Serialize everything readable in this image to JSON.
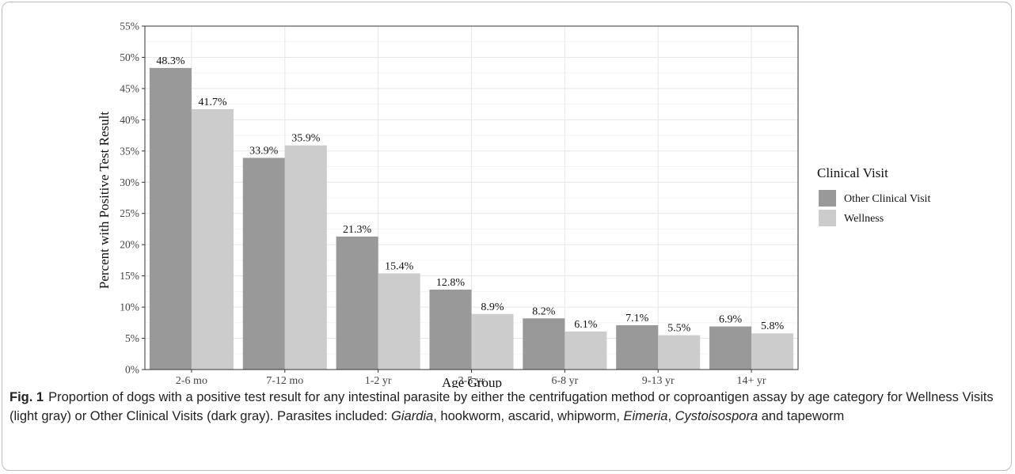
{
  "chart_data": {
    "type": "bar",
    "title": "",
    "xlabel": "Age Group",
    "ylabel": "Percent with Positive Test Result",
    "ylim": [
      0,
      55
    ],
    "yticks": [
      "0%",
      "5%",
      "10%",
      "15%",
      "20%",
      "25%",
      "30%",
      "35%",
      "40%",
      "45%",
      "50%",
      "55%"
    ],
    "grid": true,
    "legend_position": "right",
    "legend_title": "Clinical Visit",
    "categories": [
      "2-6 mo",
      "7-12 mo",
      "1-2 yr",
      "3-5 yr",
      "6-8 yr",
      "9-13 yr",
      "14+ yr"
    ],
    "series": [
      {
        "name": "Other Clinical Visit",
        "color": "#999999",
        "values": [
          48.3,
          33.9,
          21.3,
          12.8,
          8.2,
          7.1,
          6.9
        ],
        "labels": [
          "48.3%",
          "33.9%",
          "21.3%",
          "12.8%",
          "8.2%",
          "7.1%",
          "6.9%"
        ]
      },
      {
        "name": "Wellness",
        "color": "#cccccc",
        "values": [
          41.7,
          35.9,
          15.4,
          8.9,
          6.1,
          5.5,
          5.8
        ],
        "labels": [
          "41.7%",
          "35.9%",
          "15.4%",
          "8.9%",
          "6.1%",
          "5.5%",
          "5.8%"
        ]
      }
    ]
  },
  "caption": {
    "label": "Fig. 1",
    "parts": [
      {
        "text": "Proportion of dogs with a positive test result for any intestinal parasite by either the centrifugation method or coproantigen assay by age category for Wellness Visits (light gray) or Other Clinical Visits (dark gray). Parasites included: ",
        "italic": false
      },
      {
        "text": "Giardia",
        "italic": true
      },
      {
        "text": ", hookworm, ascarid, whipworm, ",
        "italic": false
      },
      {
        "text": "Eimeria",
        "italic": true
      },
      {
        "text": ", ",
        "italic": false
      },
      {
        "text": "Cystoisospora",
        "italic": true
      },
      {
        "text": " and tapeworm",
        "italic": false
      }
    ]
  }
}
